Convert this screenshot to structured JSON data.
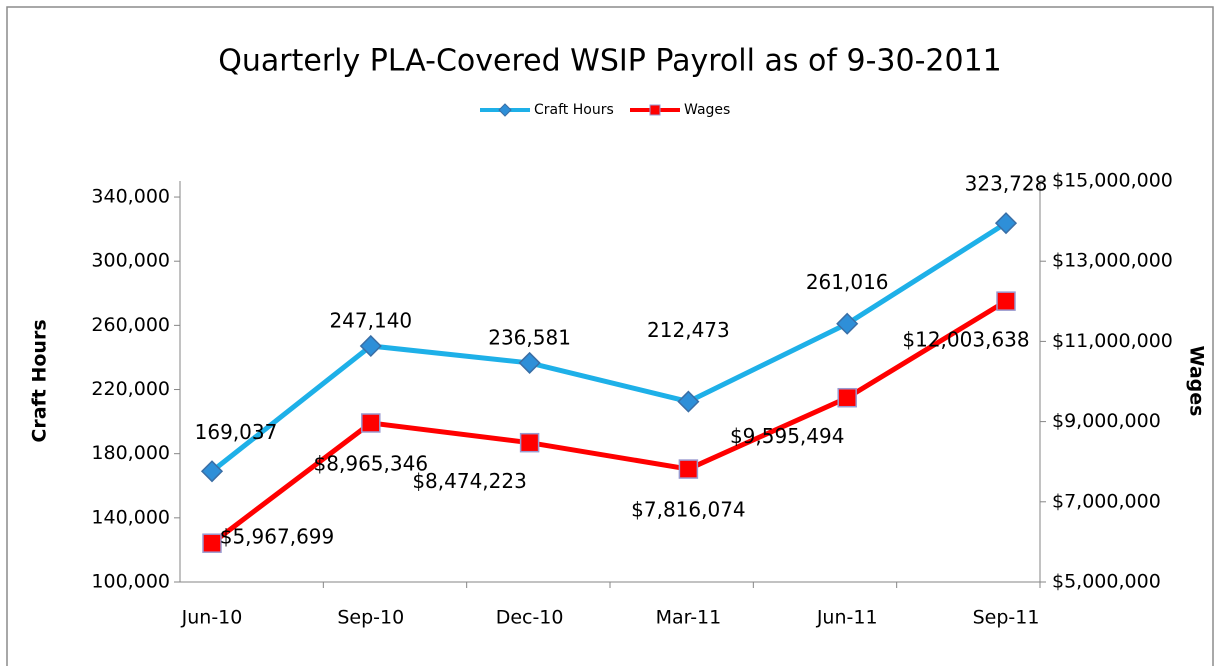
{
  "chart_data": {
    "type": "line",
    "title": "Quarterly PLA-Covered WSIP Payroll as of 9-30-2011",
    "y_label": "Craft Hours",
    "y2_label": "Wages",
    "categories": [
      "Jun-10",
      "Sep-10",
      "Dec-10",
      "Mar-11",
      "Jun-11",
      "Sep-11"
    ],
    "series": [
      {
        "name": "Craft Hours",
        "color": "#1eb0e8",
        "marker": "diamond",
        "values": [
          169037,
          247140,
          236581,
          212473,
          261016,
          323728
        ],
        "value_labels": [
          "169,037",
          "247,140",
          "236,581",
          "212,473",
          "261,016",
          "323,728"
        ]
      },
      {
        "name": "Wages",
        "color": "#ff0000",
        "marker": "square",
        "axis": "y2",
        "values": [
          5967699,
          8965346,
          8474223,
          7816074,
          9595494,
          12003638
        ],
        "value_labels": [
          "$5,967,699",
          "$8,965,346",
          "$8,474,223",
          "$7,816,074",
          "$9,595,494",
          "$12,003,638"
        ]
      }
    ],
    "ylim": [
      100000,
      350000
    ],
    "yticks": [
      {
        "value": 100000,
        "label": "100,000"
      },
      {
        "value": 140000,
        "label": "140,000"
      },
      {
        "value": 180000,
        "label": "180,000"
      },
      {
        "value": 220000,
        "label": "220,000"
      },
      {
        "value": 260000,
        "label": "260,000"
      },
      {
        "value": 300000,
        "label": "300,000"
      },
      {
        "value": 340000,
        "label": "340,000"
      }
    ],
    "y2lim": [
      5000000,
      15000000
    ],
    "y2ticks": [
      {
        "value": 5000000,
        "label": "$5,000,000"
      },
      {
        "value": 7000000,
        "label": "$7,000,000"
      },
      {
        "value": 9000000,
        "label": "$9,000,000"
      },
      {
        "value": 11000000,
        "label": "$11,000,000"
      },
      {
        "value": 13000000,
        "label": "$13,000,000"
      },
      {
        "value": 15000000,
        "label": "$15,000,000"
      }
    ],
    "grid": false,
    "legend": "top"
  }
}
